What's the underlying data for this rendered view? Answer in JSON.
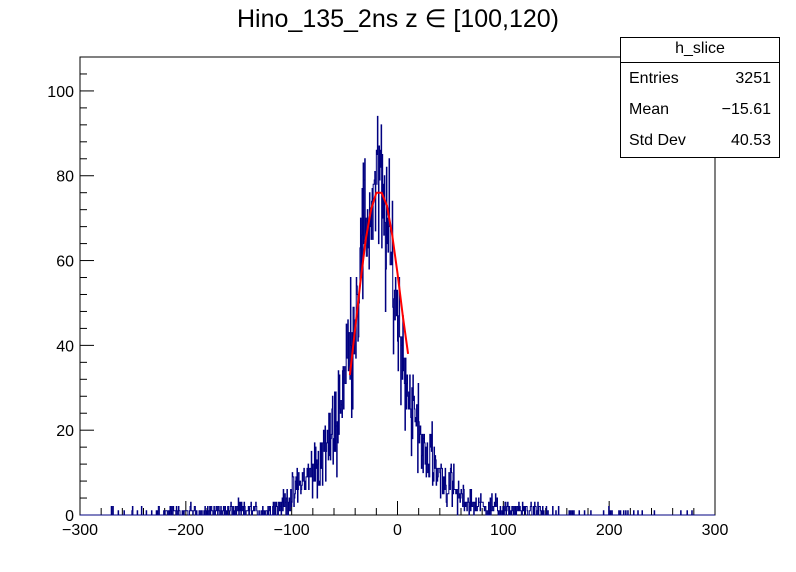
{
  "title": "Hino_135_2ns z  ∈ [100,120)",
  "stats_box": {
    "name": "h_slice",
    "rows": [
      {
        "label": "Entries",
        "value": "3251"
      },
      {
        "label": "Mean",
        "value": "−15.61"
      },
      {
        "label": "Std Dev",
        "value": "40.53"
      }
    ]
  },
  "colors": {
    "histogram": "#000080",
    "fit": "#ff0000",
    "axis": "#000000"
  },
  "chart_data": {
    "type": "histogram",
    "title": "Hino_135_2ns z  ∈ [100,120)",
    "xlabel": "",
    "ylabel": "",
    "xlim": [
      -300,
      300
    ],
    "ylim": [
      0,
      108
    ],
    "xticks": [
      "−300",
      "−200",
      "−100",
      "0",
      "100",
      "200",
      "300"
    ],
    "yticks": [
      "0",
      "20",
      "40",
      "60",
      "80",
      "100"
    ],
    "grid": false,
    "legend": "top-right",
    "series": [
      {
        "name": "h_slice",
        "style": "steps",
        "x": [
          -140,
          -130,
          -120,
          -110,
          -100,
          -95,
          -90,
          -85,
          -80,
          -75,
          -70,
          -65,
          -60,
          -55,
          -50,
          -45,
          -40,
          -35,
          -30,
          -25,
          -20,
          -15,
          -10,
          -5,
          0,
          5,
          10,
          15,
          20,
          25,
          30,
          35,
          40,
          45,
          50,
          55,
          60,
          70,
          80,
          90,
          100,
          110,
          120,
          130,
          140
        ],
        "values": [
          1,
          1,
          1,
          2,
          4,
          6,
          8,
          9,
          10,
          12,
          14,
          17,
          20,
          26,
          33,
          40,
          48,
          60,
          68,
          72,
          78,
          75,
          66,
          58,
          48,
          38,
          30,
          24,
          20,
          16,
          14,
          11,
          10,
          8,
          7,
          5,
          4,
          3,
          2,
          2,
          1,
          1,
          1,
          1,
          0.5
        ]
      },
      {
        "name": "fit",
        "type": "line",
        "x": [
          -45,
          -40,
          -35,
          -30,
          -25,
          -20,
          -15,
          -10,
          -5,
          0,
          5,
          10
        ],
        "values": [
          33,
          44,
          55,
          65,
          72,
          76,
          76,
          73,
          66,
          57,
          47,
          38
        ]
      }
    ]
  }
}
